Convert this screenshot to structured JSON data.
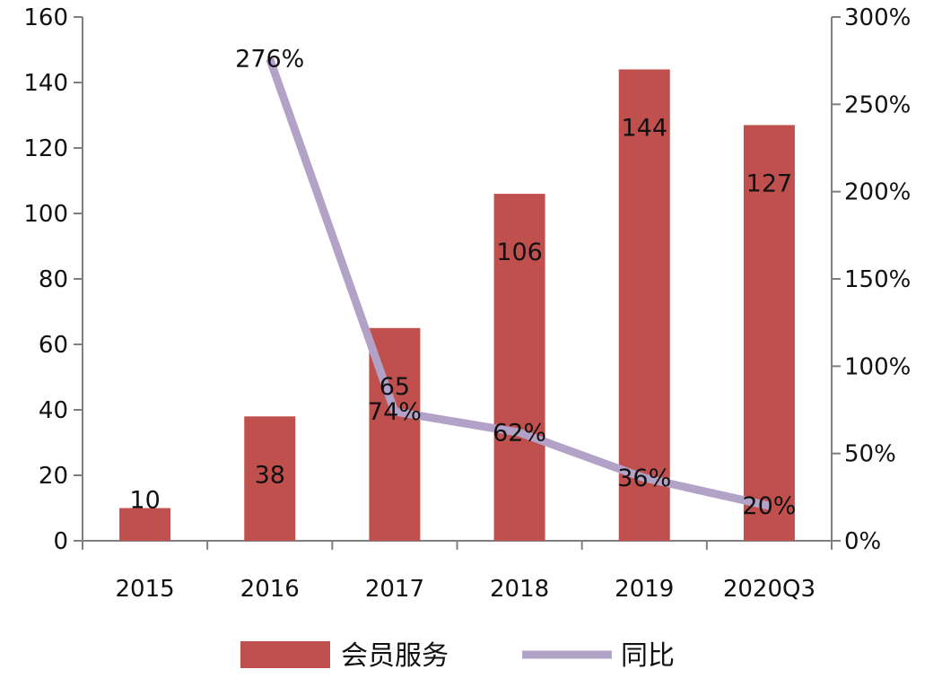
{
  "chart_data": {
    "type": "bar",
    "categories": [
      "2015",
      "2016",
      "2017",
      "2018",
      "2019",
      "2020Q3"
    ],
    "series": [
      {
        "name": "会员服务",
        "type": "bar",
        "axis": "left",
        "values": [
          10,
          38,
          65,
          106,
          144,
          127
        ],
        "labels": [
          "10",
          "38",
          "65",
          "106",
          "144",
          "127"
        ],
        "color": "#c0504d"
      },
      {
        "name": "同比",
        "type": "line",
        "axis": "right",
        "values": [
          null,
          276,
          74,
          62,
          36,
          20
        ],
        "labels": [
          null,
          "276%",
          "74%",
          "62%",
          "36%",
          "20%"
        ],
        "color": "#b3a2c7"
      }
    ],
    "y_left": {
      "min": 0,
      "max": 160,
      "step": 20,
      "ticks": [
        "0",
        "20",
        "40",
        "60",
        "80",
        "100",
        "120",
        "140",
        "160"
      ]
    },
    "y_right": {
      "min": 0,
      "max": 300,
      "step": 50,
      "ticks": [
        "0%",
        "50%",
        "100%",
        "150%",
        "200%",
        "250%",
        "300%"
      ]
    },
    "axis_color": "#7f7f7f",
    "grid": false,
    "legend_position": "bottom"
  }
}
